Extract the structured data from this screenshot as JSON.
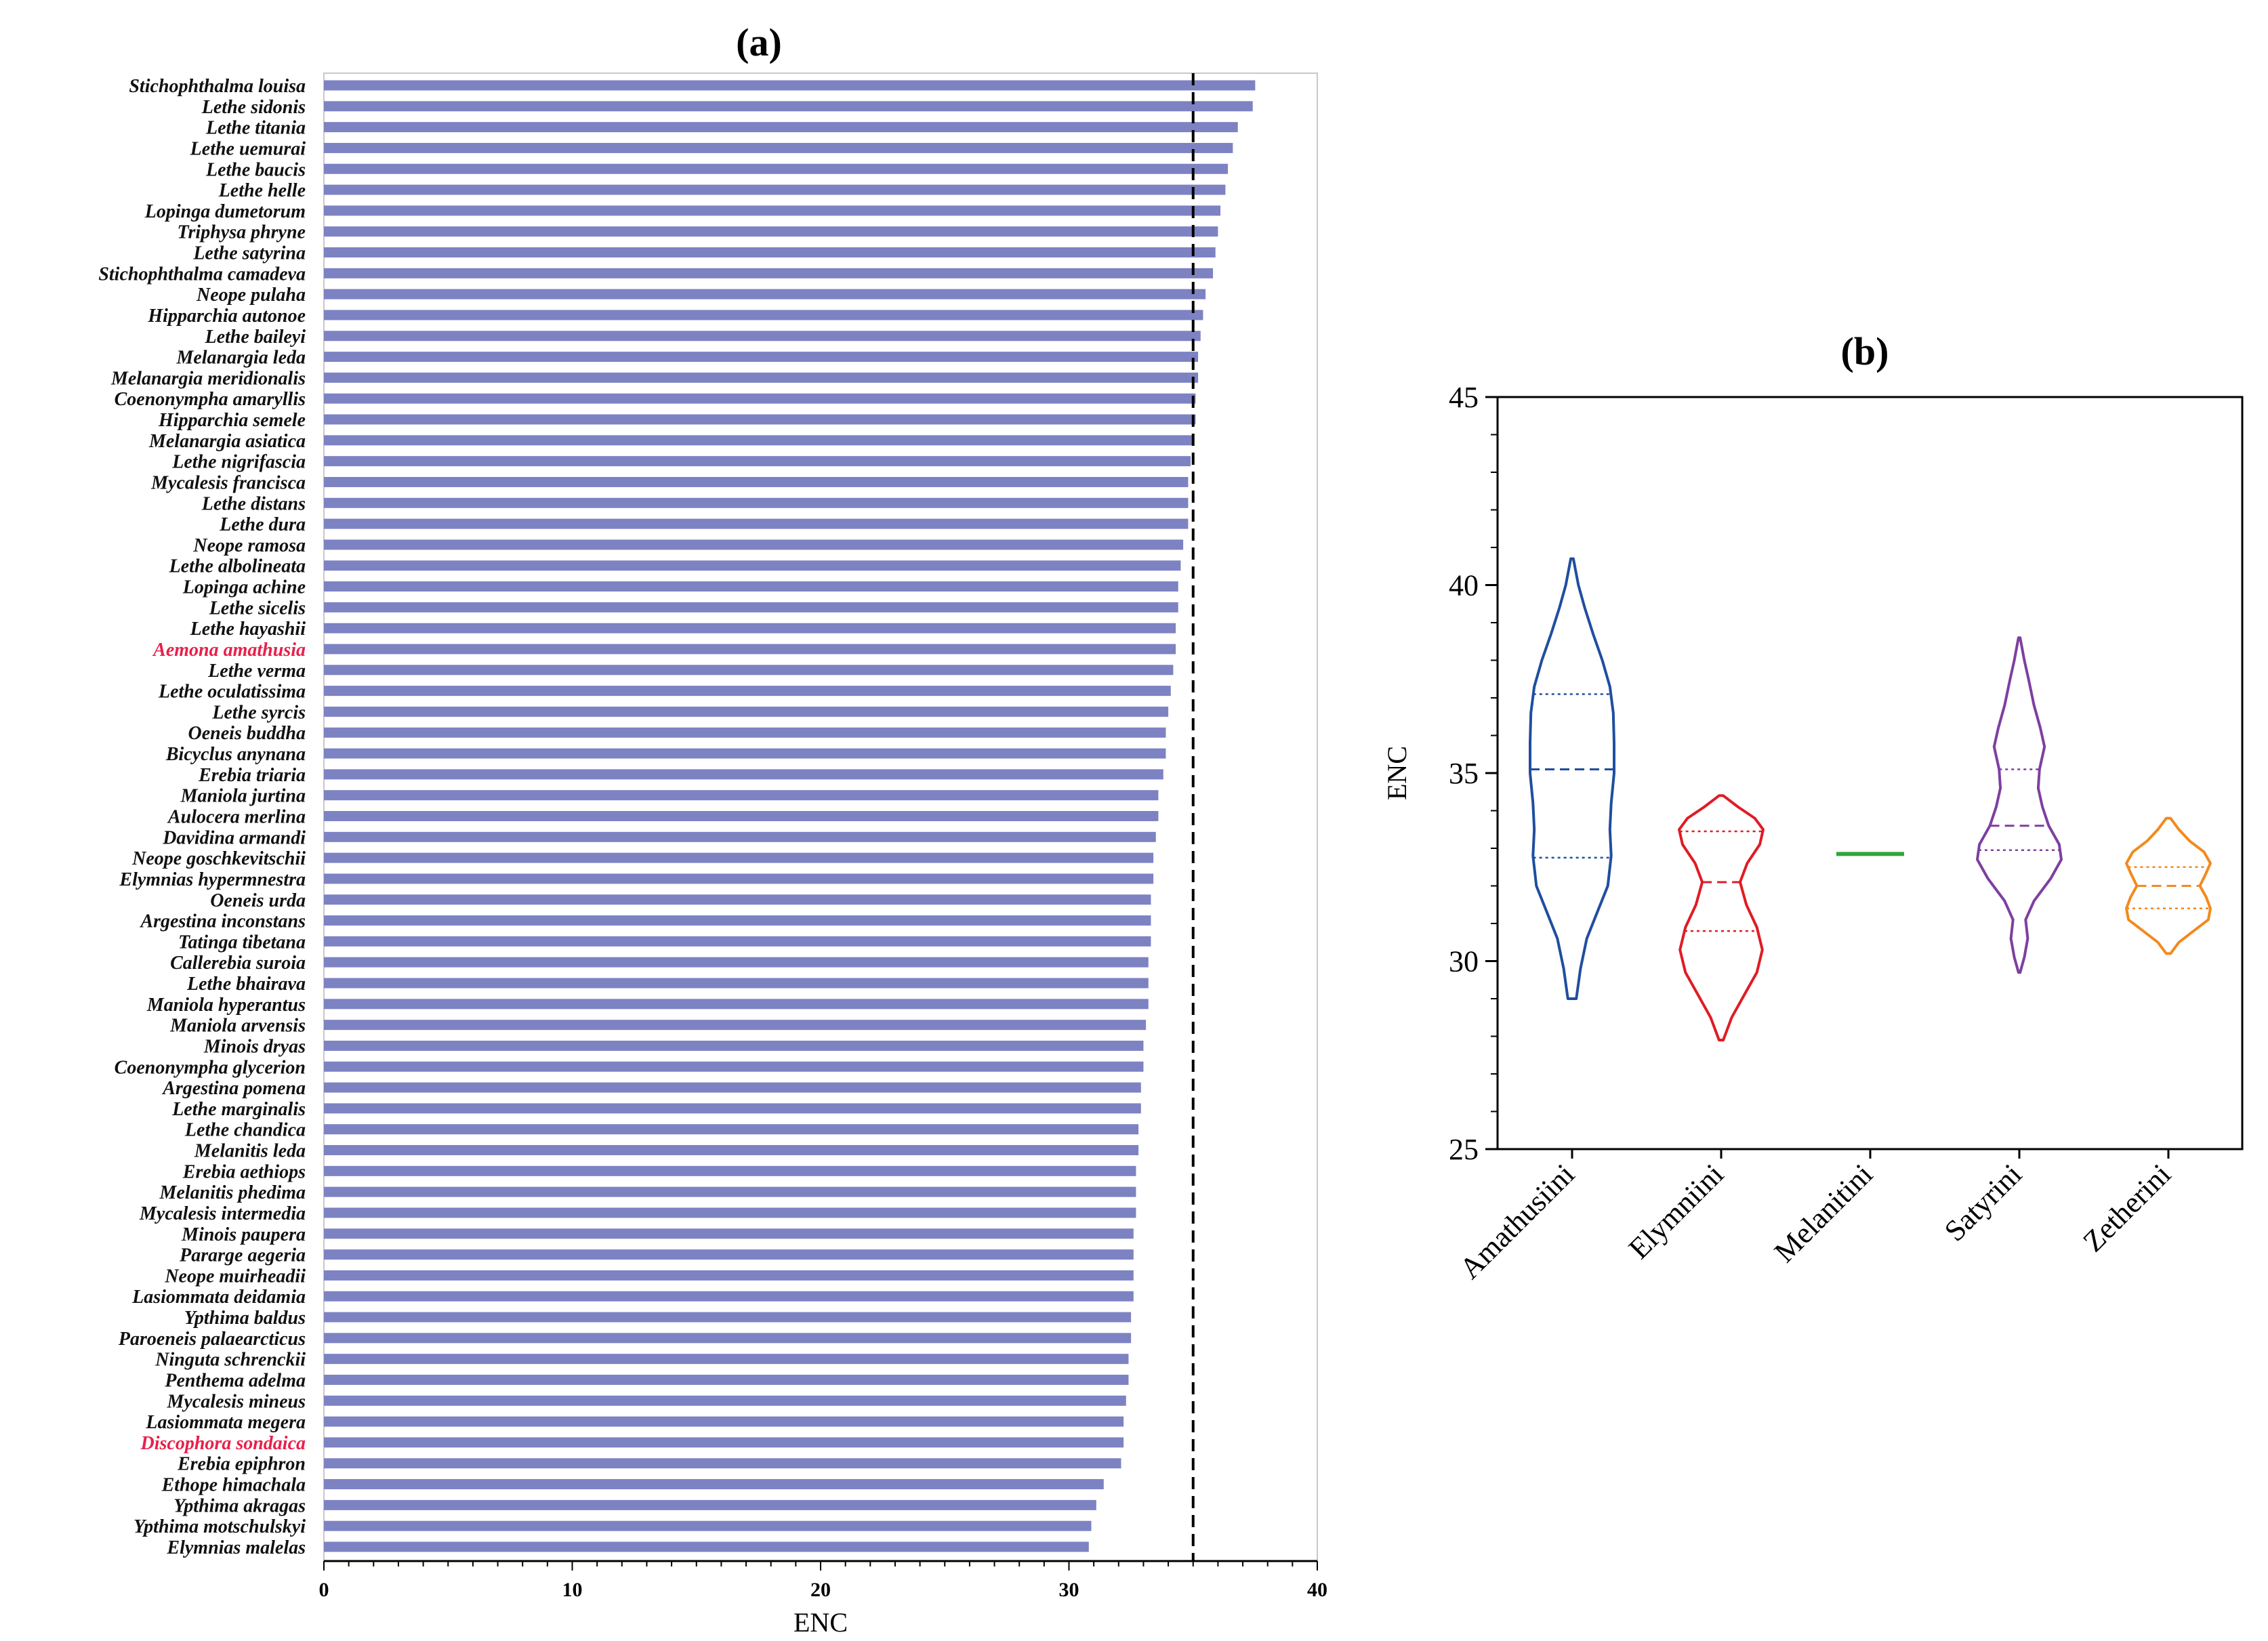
{
  "chart_data": [
    {
      "type": "bar",
      "orientation": "horizontal",
      "panel_label": "(a)",
      "xlabel": "ENC",
      "xlim": [
        0,
        40
      ],
      "xticks": [
        0,
        10,
        20,
        30,
        40
      ],
      "reference_line": 35,
      "bar_color": "#7d82c3",
      "highlight_color": "#e8204a",
      "highlighted": [
        "Aemona amathusia",
        "Discophora sondaica"
      ],
      "categories": [
        "Stichophthalma louisa",
        "Lethe sidonis",
        "Lethe titania",
        "Lethe uemurai",
        "Lethe baucis",
        "Lethe helle",
        "Lopinga dumetorum",
        "Triphysa phryne",
        "Lethe satyrina",
        "Stichophthalma camadeva",
        "Neope pulaha",
        "Hipparchia autonoe",
        "Lethe baileyi",
        "Melanargia leda",
        "Melanargia meridionalis",
        "Coenonympha amaryllis",
        "Hipparchia semele",
        "Melanargia asiatica",
        "Lethe nigrifascia",
        "Mycalesis francisca",
        "Lethe distans",
        "Lethe dura",
        "Neope ramosa",
        "Lethe albolineata",
        "Lopinga achine",
        "Lethe sicelis",
        "Lethe hayashii",
        "Aemona amathusia",
        "Lethe verma",
        "Lethe oculatissima",
        "Lethe syrcis",
        "Oeneis buddha",
        "Bicyclus anynana",
        "Erebia triaria",
        "Maniola jurtina",
        "Aulocera merlina",
        "Davidina armandi",
        "Neope goschkevitschii",
        "Elymnias hypermnestra",
        "Oeneis urda",
        "Argestina inconstans",
        "Tatinga tibetana",
        "Callerebia suroia",
        "Lethe bhairava",
        "Maniola hyperantus",
        "Maniola arvensis",
        "Minois dryas",
        "Coenonympha glycerion",
        "Argestina pomena",
        "Lethe marginalis",
        "Lethe chandica",
        "Melanitis leda",
        "Erebia aethiops",
        "Melanitis phedima",
        "Mycalesis intermedia",
        "Minois paupera",
        "Pararge aegeria",
        "Neope muirheadii",
        "Lasiommata deidamia",
        "Ypthima baldus",
        "Paroeneis palaearcticus",
        "Ninguta schrenckii",
        "Penthema adelma",
        "Mycalesis mineus",
        "Lasiommata megera",
        "Discophora sondaica",
        "Erebia epiphron",
        "Ethope himachala",
        "Ypthima akragas",
        "Ypthima motschulskyi",
        "Elymnias malelas"
      ],
      "values": [
        37.5,
        37.4,
        36.8,
        36.6,
        36.4,
        36.3,
        36.1,
        36.0,
        35.9,
        35.8,
        35.5,
        35.4,
        35.3,
        35.2,
        35.2,
        35.1,
        35.1,
        35.0,
        34.9,
        34.8,
        34.8,
        34.8,
        34.6,
        34.5,
        34.4,
        34.4,
        34.3,
        34.3,
        34.2,
        34.1,
        34.0,
        33.9,
        33.9,
        33.8,
        33.6,
        33.6,
        33.5,
        33.4,
        33.4,
        33.3,
        33.3,
        33.3,
        33.2,
        33.2,
        33.2,
        33.1,
        33.0,
        33.0,
        32.9,
        32.9,
        32.8,
        32.8,
        32.7,
        32.7,
        32.7,
        32.6,
        32.6,
        32.6,
        32.6,
        32.5,
        32.5,
        32.4,
        32.4,
        32.3,
        32.2,
        32.2,
        32.1,
        31.4,
        31.1,
        30.9,
        30.8
      ]
    },
    {
      "type": "violin",
      "panel_label": "(b)",
      "ylabel": "ENC",
      "ylim": [
        25,
        45
      ],
      "yticks": [
        25,
        30,
        35,
        40,
        45
      ],
      "groups": [
        {
          "name": "Amathusiini",
          "color": "#1f4e9f",
          "min": 29.0,
          "max": 40.7,
          "q1": 32.75,
          "median": 35.1,
          "q3": 37.1,
          "profile": [
            [
              29.0,
              0.1
            ],
            [
              29.8,
              0.2
            ],
            [
              30.6,
              0.35
            ],
            [
              31.3,
              0.6
            ],
            [
              32.0,
              0.85
            ],
            [
              32.8,
              0.93
            ],
            [
              33.5,
              0.9
            ],
            [
              34.2,
              0.93
            ],
            [
              35.0,
              1.0
            ],
            [
              35.8,
              1.0
            ],
            [
              36.6,
              0.98
            ],
            [
              37.3,
              0.9
            ],
            [
              38.0,
              0.72
            ],
            [
              38.7,
              0.5
            ],
            [
              39.4,
              0.3
            ],
            [
              40.0,
              0.15
            ],
            [
              40.7,
              0.03
            ]
          ]
        },
        {
          "name": "Elymniini",
          "color": "#e01b24",
          "min": 27.9,
          "max": 34.4,
          "q1": 30.8,
          "median": 32.1,
          "q3": 33.45,
          "profile": [
            [
              27.9,
              0.05
            ],
            [
              28.5,
              0.25
            ],
            [
              29.1,
              0.55
            ],
            [
              29.7,
              0.85
            ],
            [
              30.3,
              0.98
            ],
            [
              30.9,
              0.85
            ],
            [
              31.5,
              0.6
            ],
            [
              32.1,
              0.45
            ],
            [
              32.6,
              0.62
            ],
            [
              33.1,
              0.92
            ],
            [
              33.5,
              1.0
            ],
            [
              33.8,
              0.8
            ],
            [
              34.1,
              0.4
            ],
            [
              34.4,
              0.05
            ]
          ]
        },
        {
          "name": "Melanitini",
          "color": "#2ea836",
          "min": 32.85,
          "max": 32.85,
          "line_value": 32.85
        },
        {
          "name": "Satyrini",
          "color": "#7e3fa0",
          "min": 29.7,
          "max": 38.6,
          "q1": 32.95,
          "median": 33.6,
          "q3": 35.1,
          "profile": [
            [
              29.7,
              0.02
            ],
            [
              30.1,
              0.12
            ],
            [
              30.6,
              0.2
            ],
            [
              31.1,
              0.15
            ],
            [
              31.6,
              0.35
            ],
            [
              32.2,
              0.75
            ],
            [
              32.7,
              1.0
            ],
            [
              33.1,
              0.95
            ],
            [
              33.6,
              0.7
            ],
            [
              34.1,
              0.55
            ],
            [
              34.6,
              0.45
            ],
            [
              35.1,
              0.48
            ],
            [
              35.7,
              0.6
            ],
            [
              36.2,
              0.5
            ],
            [
              36.8,
              0.35
            ],
            [
              37.5,
              0.22
            ],
            [
              38.0,
              0.12
            ],
            [
              38.6,
              0.02
            ]
          ]
        },
        {
          "name": "Zetherini",
          "color": "#f28a1e",
          "min": 30.2,
          "max": 33.8,
          "q1": 31.4,
          "median": 32.0,
          "q3": 32.5,
          "profile": [
            [
              30.2,
              0.05
            ],
            [
              30.5,
              0.25
            ],
            [
              30.8,
              0.6
            ],
            [
              31.1,
              0.95
            ],
            [
              31.4,
              1.0
            ],
            [
              31.7,
              0.9
            ],
            [
              32.0,
              0.75
            ],
            [
              32.3,
              0.88
            ],
            [
              32.6,
              1.0
            ],
            [
              32.9,
              0.85
            ],
            [
              33.2,
              0.5
            ],
            [
              33.5,
              0.25
            ],
            [
              33.8,
              0.05
            ]
          ]
        }
      ]
    }
  ]
}
